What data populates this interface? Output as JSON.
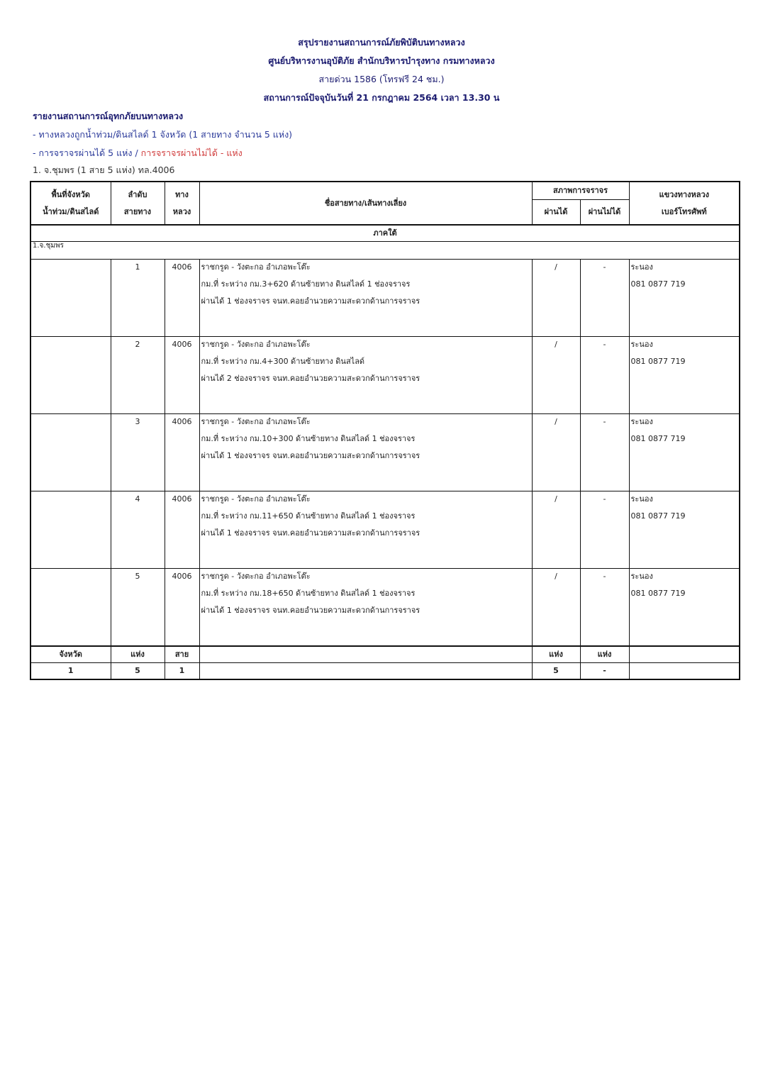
{
  "header": {
    "title": "สรุปรายงานสถานการณ์ภัยพิบัติบนทางหลวง",
    "org": "ศูนย์บริหารงานอุบัติภัย สำนักบริหารบำรุงทาง กรมทางหลวง",
    "hotline": "สายด่วน 1586 (โทรฟรี 24 ชม.)",
    "status_time": "สถานการณ์ปัจจุบันวันที่ 21 กรกฎาคม 2564 เวลา 13.30 น"
  },
  "summary": {
    "heading": "รายงานสถานการณ์อุทกภัยบนทางหลวง",
    "affected": "- ทางหลวงถูกน้ำท่วม/ดินสไลด์ 1 จังหวัด (1 สายทาง จำนวน 5 แห่ง)",
    "passable": "- การจราจรผ่านได้ 5 แห่ง / ",
    "impassable": "การจราจรผ่านไม่ได้ - แห่ง",
    "province_line": "1. จ.ชุมพร (1 สาย 5 แห่ง)  ทล.4006"
  },
  "table": {
    "headers": {
      "area_1": "พื้นที่จังหวัด",
      "area_2": "น้ำท่วม/ดินสไลด์",
      "seq_1": "ลำดับ",
      "seq_2": "สายทาง",
      "hwy_1": "ทาง",
      "hwy_2": "หลวง",
      "route": "ชื่อสายทาง/เส้นทางเลี่ยง",
      "traffic": "สภาพการจราจร",
      "pass": "ผ่านได้",
      "nopass": "ผ่านไม่ได้",
      "office_1": "แขวงทางหลวง",
      "office_2": "เบอร์โทรศัพท์"
    },
    "region": "ภาคใต้",
    "province": "1.จ.ชุมพร",
    "rows": [
      {
        "seq": "1",
        "hwy": "4006",
        "l1": "ราชกรูด - วังตะกอ อำเภอพะโต๊ะ",
        "l2": "กม.ที่ ระหว่าง กม.3+620  ด้านซ้ายทาง ดินสไลด์ 1 ช่องจราจร",
        "l3": "ผ่านได้ 1 ช่องจราจร จนท.คอยอำนวยความสะดวกด้านการจราจร",
        "pass": "/",
        "nopass": "-",
        "office": "ระนอง",
        "phone": "081 0877 719"
      },
      {
        "seq": "2",
        "hwy": "4006",
        "l1": "ราชกรูด - วังตะกอ อำเภอพะโต๊ะ",
        "l2": "กม.ที่ ระหว่าง กม.4+300  ด้านซ้ายทาง ดินสไลด์",
        "l3": "ผ่านได้ 2 ช่องจราจร จนท.คอยอำนวยความสะดวกด้านการจราจร",
        "pass": "/",
        "nopass": "-",
        "office": "ระนอง",
        "phone": "081 0877 719"
      },
      {
        "seq": "3",
        "hwy": "4006",
        "l1": "ราชกรูด - วังตะกอ อำเภอพะโต๊ะ",
        "l2": "กม.ที่ ระหว่าง กม.10+300  ด้านซ้ายทาง ดินสไลด์ 1 ช่องจราจร",
        "l3": "ผ่านได้ 1 ช่องจราจร จนท.คอยอำนวยความสะดวกด้านการจราจร",
        "pass": "/",
        "nopass": "-",
        "office": "ระนอง",
        "phone": "081 0877 719"
      },
      {
        "seq": "4",
        "hwy": "4006",
        "l1": "ราชกรูด - วังตะกอ อำเภอพะโต๊ะ",
        "l2": "กม.ที่ ระหว่าง กม.11+650  ด้านซ้ายทาง ดินสไลด์ 1 ช่องจราจร",
        "l3": "ผ่านได้ 1 ช่องจราจร จนท.คอยอำนวยความสะดวกด้านการจราจร",
        "pass": "/",
        "nopass": "-",
        "office": "ระนอง",
        "phone": "081 0877 719"
      },
      {
        "seq": "5",
        "hwy": "4006",
        "l1": "ราชกรูด - วังตะกอ อำเภอพะโต๊ะ",
        "l2": "กม.ที่ ระหว่าง กม.18+650  ด้านซ้ายทาง ดินสไลด์ 1 ช่องจราจร",
        "l3": "ผ่านได้ 1 ช่องจราจร จนท.คอยอำนวยความสะดวกด้านการจราจร",
        "pass": "/",
        "nopass": "-",
        "office": "ระนอง",
        "phone": "081 0877 719"
      }
    ],
    "footer_labels": {
      "province": "จังหวัด",
      "places": "แห่ง",
      "routes": "สาย",
      "pass": "แห่ง",
      "nopass": "แห่ง"
    },
    "footer_values": {
      "province": "1",
      "places": "5",
      "routes": "1",
      "pass": "5",
      "nopass": "-"
    }
  }
}
